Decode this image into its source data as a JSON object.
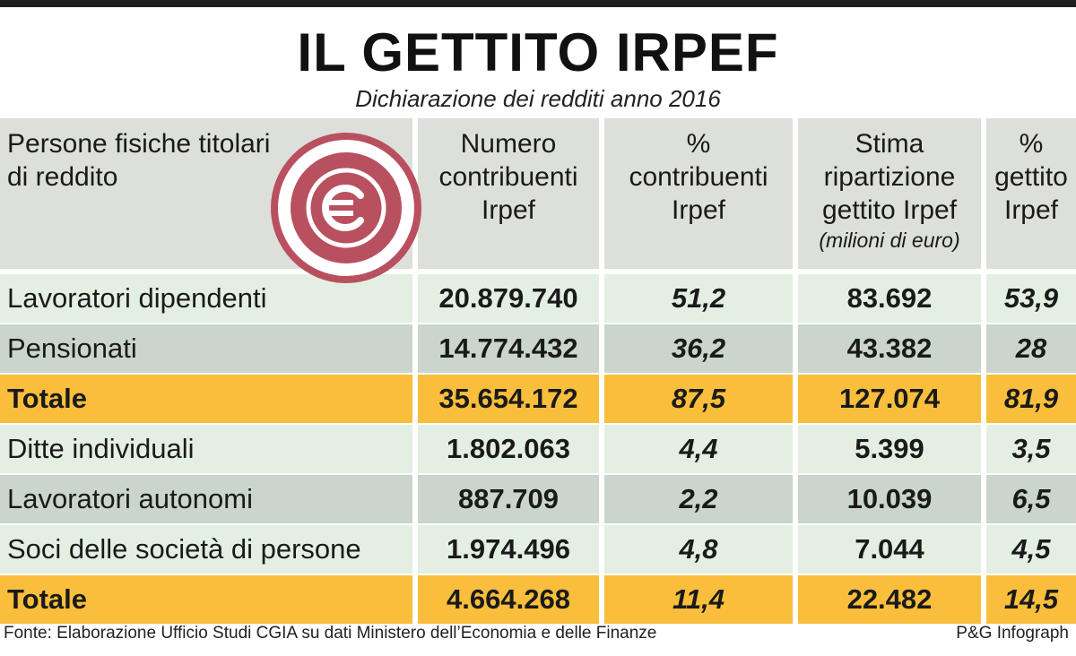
{
  "title": "IL GETTITO IRPEF",
  "subtitle": "Dichiarazione dei redditi anno 2016",
  "emblem_icon": "euro-coin-icon",
  "colors": {
    "header_bg": "#dddfdb",
    "row_light": "#e4efe3",
    "row_dark": "#c9d5cd",
    "total": "#f9be3b",
    "emblem": "#b95060"
  },
  "chart_data": {
    "type": "table",
    "columns": [
      {
        "label": "Persone fisiche titolari di reddito"
      },
      {
        "label": "Numero contribuenti Irpef"
      },
      {
        "label": "% contribuenti Irpef"
      },
      {
        "label": "Stima ripartizione gettito Irpef",
        "unit": "(milioni di euro)"
      },
      {
        "label": "% gettito Irpef"
      }
    ],
    "rows": [
      {
        "label": "Lavoratori dipendenti",
        "contribuenti": "20.879.740",
        "pct_contribuenti": "51,2",
        "gettito": "83.692",
        "pct_gettito": "53,9",
        "style": "light"
      },
      {
        "label": "Pensionati",
        "contribuenti": "14.774.432",
        "pct_contribuenti": "36,2",
        "gettito": "43.382",
        "pct_gettito": "28",
        "style": "dark"
      },
      {
        "label": "Totale",
        "contribuenti": "35.654.172",
        "pct_contribuenti": "87,5",
        "gettito": "127.074",
        "pct_gettito": "81,9",
        "style": "total"
      },
      {
        "label": "Ditte individuali",
        "contribuenti": "1.802.063",
        "pct_contribuenti": "4,4",
        "gettito": "5.399",
        "pct_gettito": "3,5",
        "style": "light"
      },
      {
        "label": "Lavoratori autonomi",
        "contribuenti": "887.709",
        "pct_contribuenti": "2,2",
        "gettito": "10.039",
        "pct_gettito": "6,5",
        "style": "dark"
      },
      {
        "label": "Soci delle società di persone",
        "contribuenti": "1.974.496",
        "pct_contribuenti": "4,8",
        "gettito": "7.044",
        "pct_gettito": "4,5",
        "style": "light"
      },
      {
        "label": "Totale",
        "contribuenti": "4.664.268",
        "pct_contribuenti": "11,4",
        "gettito": "22.482",
        "pct_gettito": "14,5",
        "style": "total"
      }
    ]
  },
  "footer": {
    "source": "Fonte: Elaborazione Ufficio Studi CGIA su dati Ministero dell’Economia e delle Finanze",
    "credit": "P&G Infograph"
  }
}
